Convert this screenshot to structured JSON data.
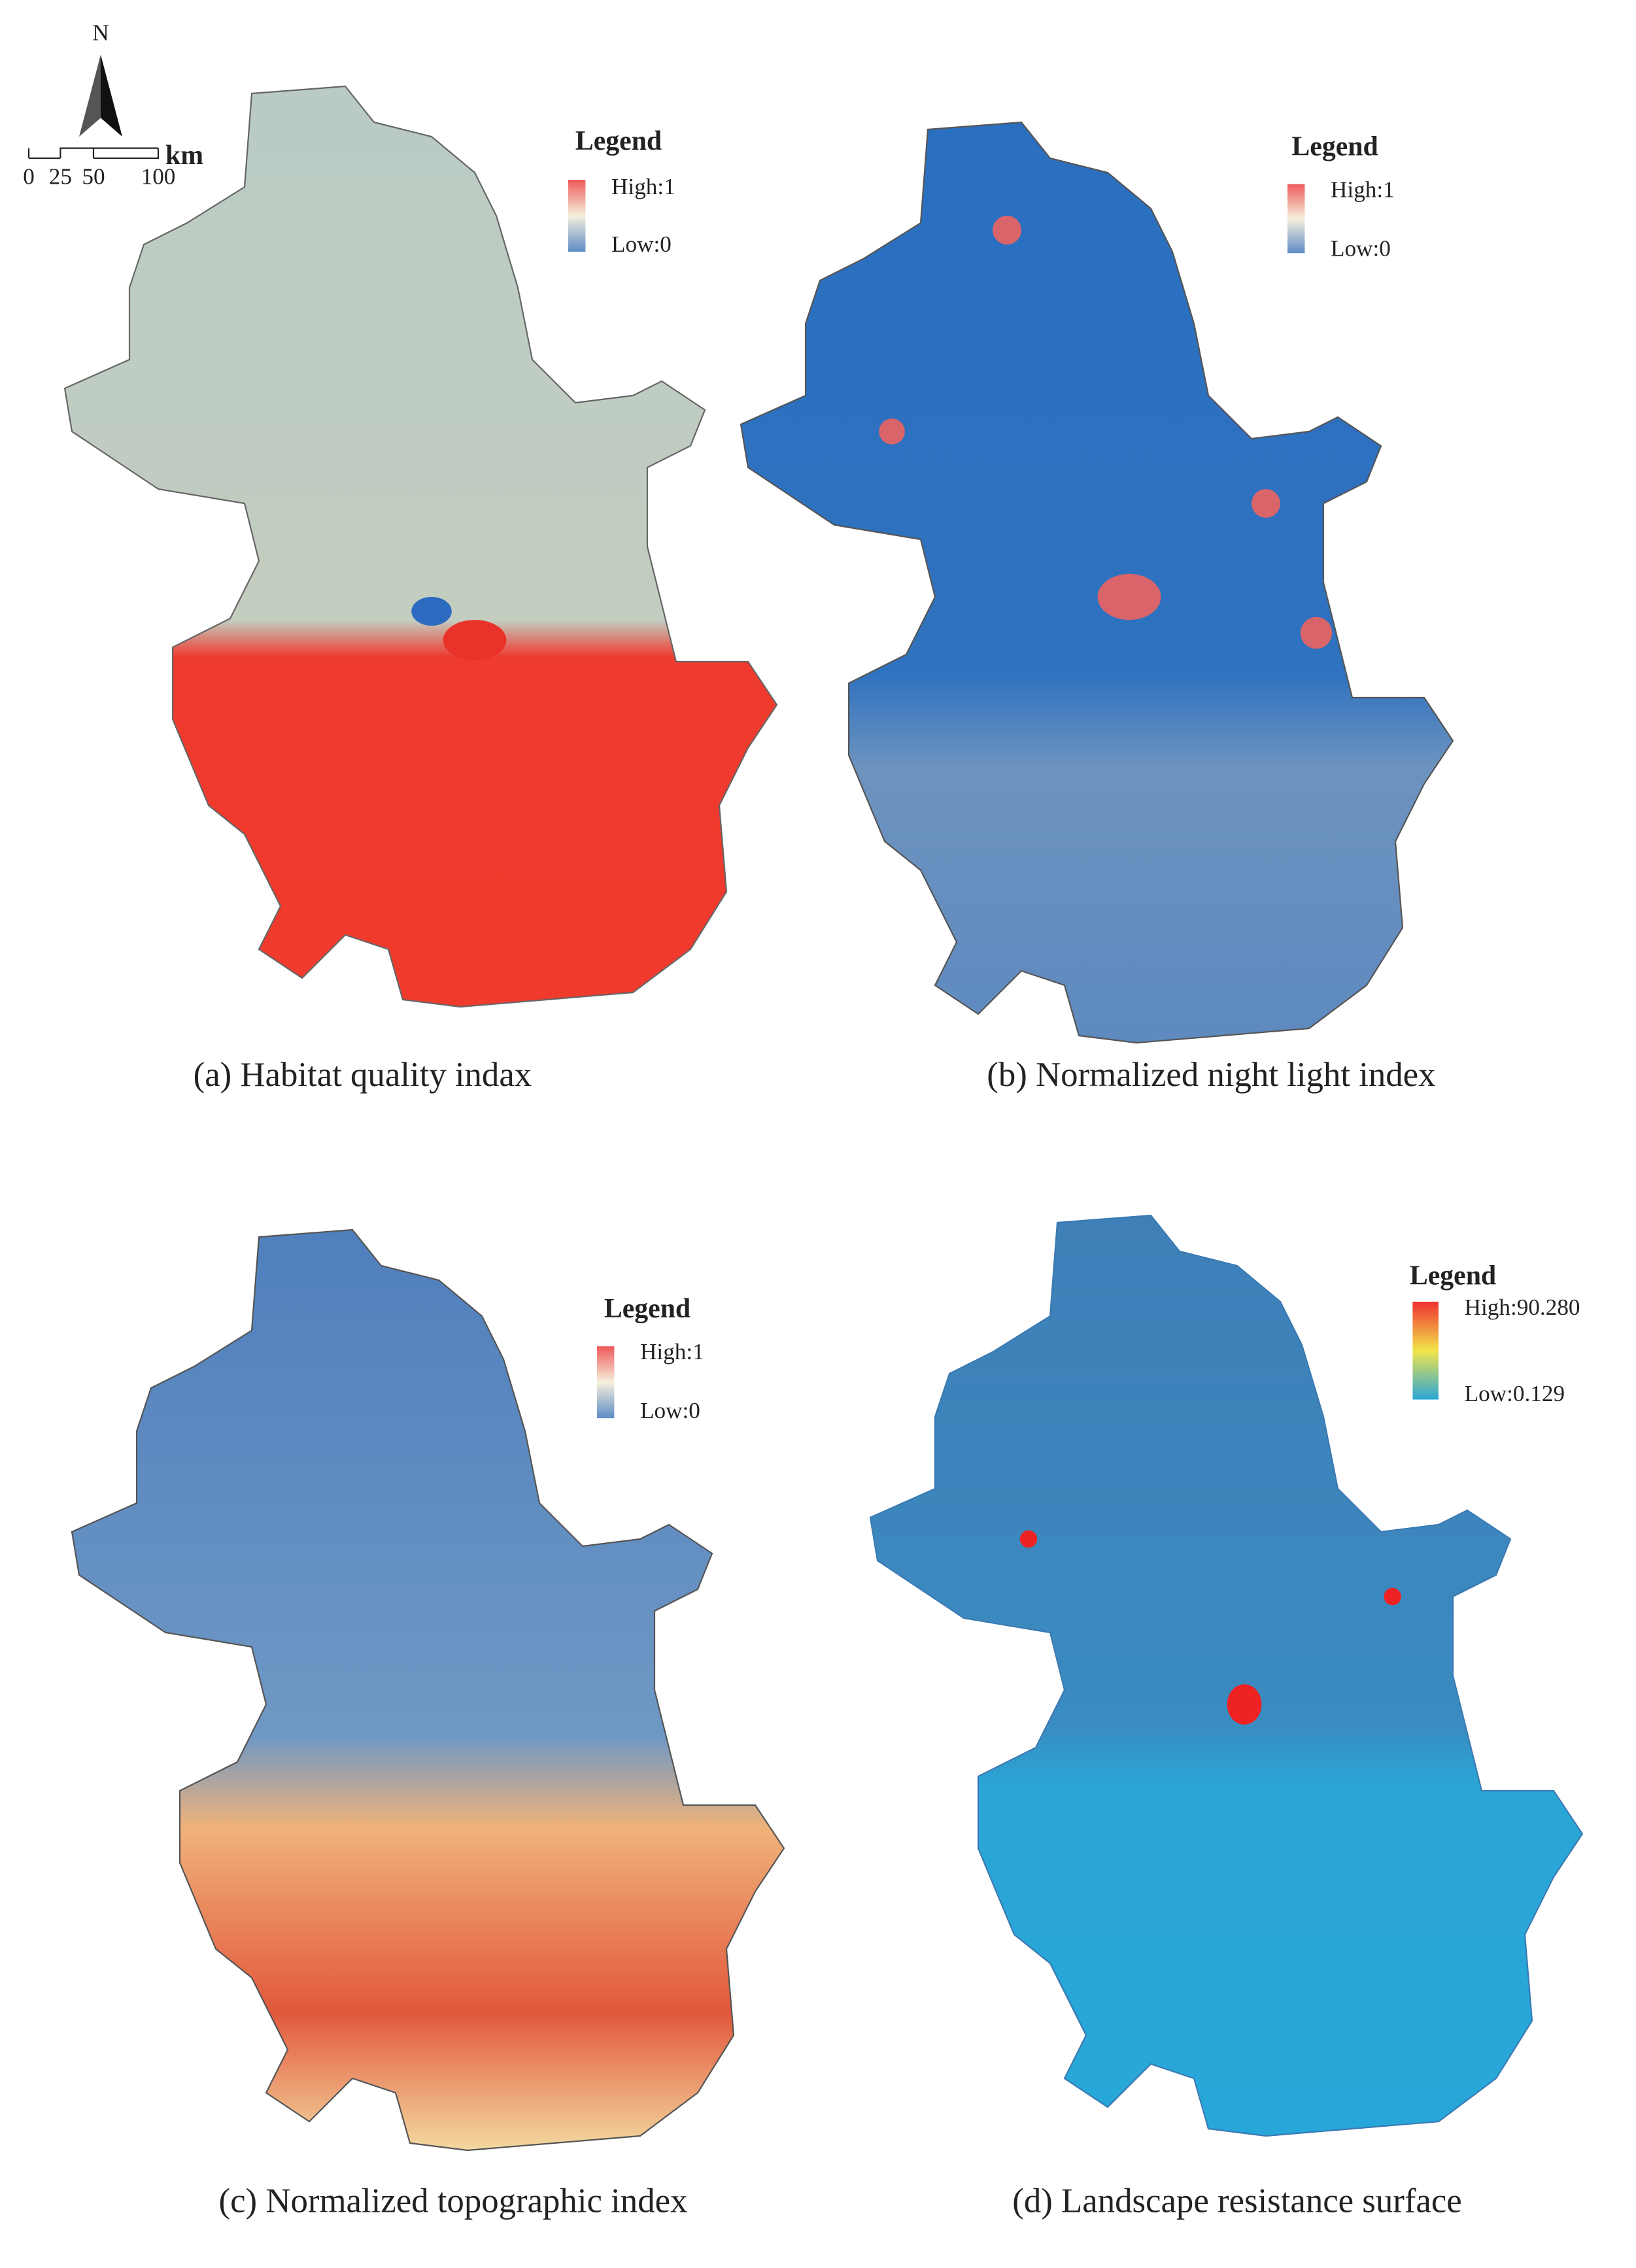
{
  "north_arrow": {
    "label": "N"
  },
  "scale_bar": {
    "unit": "km",
    "labels": [
      "0",
      "25",
      "50",
      "100"
    ]
  },
  "panels": [
    {
      "caption": "(a) Habitat quality indax",
      "legend": {
        "title": "Legend",
        "high": "High:1",
        "low": "Low:0"
      }
    },
    {
      "caption": "(b) Normalized night light index",
      "legend": {
        "title": "Legend",
        "high": "High:1",
        "low": "Low:0"
      }
    },
    {
      "caption": "(c) Normalized topographic index",
      "legend": {
        "title": "Legend",
        "high": "High:1",
        "low": "Low:0"
      }
    },
    {
      "caption": "(d) Landscape resistance surface",
      "legend": {
        "title": "Legend",
        "high": "High:90.280",
        "low": "Low:0.129"
      }
    }
  ]
}
